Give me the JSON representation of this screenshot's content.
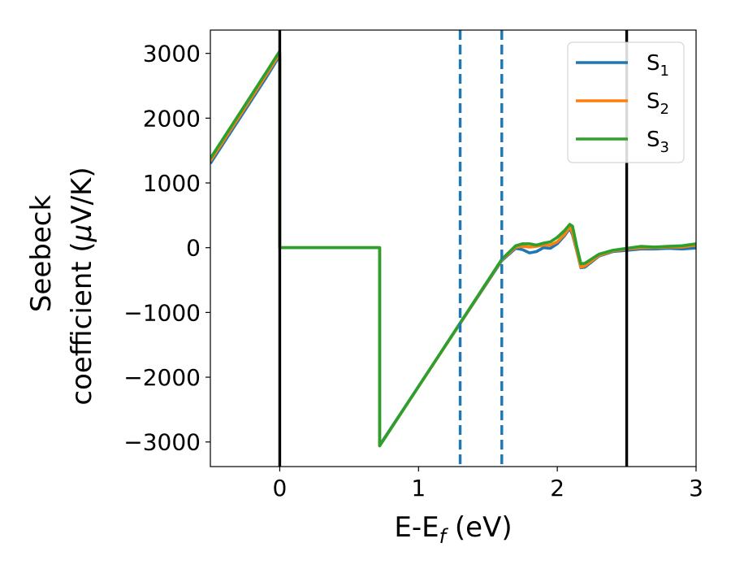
{
  "chart_data": {
    "type": "line",
    "xlabel": "E-E",
    "xlabel_sub": "f",
    "xlabel_unit": " (eV)",
    "ylabel_line1": "Seebeck",
    "ylabel_line2": "coefficient  (",
    "ylabel_mu": "μ",
    "ylabel_unit": "V/K)",
    "xlim": [
      -0.5,
      3.0
    ],
    "ylim": [
      -3380,
      3360
    ],
    "xticks": [
      0,
      1,
      2,
      3
    ],
    "xtick_labels": [
      "0",
      "1",
      "2",
      "3"
    ],
    "yticks": [
      -3000,
      -2000,
      -1000,
      0,
      1000,
      2000,
      3000
    ],
    "ytick_labels": [
      "−3000",
      "−2000",
      "−1000",
      "0",
      "1000",
      "2000",
      "3000"
    ],
    "grid": false,
    "legend_position": "top-right",
    "vlines_solid": [
      0.0,
      2.5
    ],
    "vlines_dashed": [
      1.3,
      1.6
    ],
    "vline_colors": {
      "solid": "#000000",
      "dashed": "#1f77b4"
    },
    "series": [
      {
        "name": "S",
        "name_sub": "1",
        "color": "#1f77b4",
        "points": [
          [
            -0.5,
            1300
          ],
          [
            -0.4,
            1630
          ],
          [
            -0.3,
            1960
          ],
          [
            -0.2,
            2290
          ],
          [
            -0.1,
            2620
          ],
          [
            -0.005,
            2950
          ],
          [
            0.0,
            2950
          ],
          [
            0.0,
            0
          ],
          [
            0.72,
            0
          ],
          [
            0.72,
            -3050
          ],
          [
            1.6,
            -200
          ],
          [
            1.7,
            -10
          ],
          [
            1.75,
            -30
          ],
          [
            1.8,
            -80
          ],
          [
            1.85,
            -60
          ],
          [
            1.9,
            0
          ],
          [
            1.95,
            -10
          ],
          [
            2.0,
            60
          ],
          [
            2.05,
            180
          ],
          [
            2.09,
            300
          ],
          [
            2.11,
            200
          ],
          [
            2.14,
            -50
          ],
          [
            2.17,
            -310
          ],
          [
            2.2,
            -300
          ],
          [
            2.3,
            -130
          ],
          [
            2.4,
            -60
          ],
          [
            2.5,
            -40
          ],
          [
            2.6,
            -20
          ],
          [
            2.7,
            -20
          ],
          [
            2.8,
            -10
          ],
          [
            2.9,
            -20
          ],
          [
            3.0,
            -5
          ]
        ]
      },
      {
        "name": "S",
        "name_sub": "2",
        "color": "#ff7f0e",
        "points": [
          [
            -0.5,
            1340
          ],
          [
            -0.4,
            1670
          ],
          [
            -0.3,
            2000
          ],
          [
            -0.2,
            2330
          ],
          [
            -0.1,
            2660
          ],
          [
            -0.005,
            2980
          ],
          [
            0.0,
            2980
          ],
          [
            0.0,
            0
          ],
          [
            0.72,
            0
          ],
          [
            0.72,
            -3060
          ],
          [
            1.6,
            -190
          ],
          [
            1.7,
            10
          ],
          [
            1.75,
            20
          ],
          [
            1.8,
            10
          ],
          [
            1.85,
            20
          ],
          [
            1.9,
            40
          ],
          [
            1.95,
            40
          ],
          [
            2.0,
            90
          ],
          [
            2.05,
            200
          ],
          [
            2.09,
            320
          ],
          [
            2.11,
            230
          ],
          [
            2.14,
            -40
          ],
          [
            2.17,
            -300
          ],
          [
            2.2,
            -280
          ],
          [
            2.3,
            -120
          ],
          [
            2.4,
            -50
          ],
          [
            2.5,
            -20
          ],
          [
            2.6,
            0
          ],
          [
            2.7,
            0
          ],
          [
            2.8,
            10
          ],
          [
            2.9,
            10
          ],
          [
            3.0,
            40
          ]
        ]
      },
      {
        "name": "S",
        "name_sub": "3",
        "color": "#2ca02c",
        "points": [
          [
            -0.5,
            1380
          ],
          [
            -0.4,
            1710
          ],
          [
            -0.3,
            2040
          ],
          [
            -0.2,
            2370
          ],
          [
            -0.1,
            2700
          ],
          [
            -0.005,
            3020
          ],
          [
            0.0,
            3020
          ],
          [
            0.0,
            0
          ],
          [
            0.72,
            0
          ],
          [
            0.72,
            -3060
          ],
          [
            1.6,
            -180
          ],
          [
            1.7,
            30
          ],
          [
            1.75,
            60
          ],
          [
            1.8,
            60
          ],
          [
            1.85,
            40
          ],
          [
            1.9,
            70
          ],
          [
            1.95,
            90
          ],
          [
            2.0,
            160
          ],
          [
            2.05,
            260
          ],
          [
            2.09,
            360
          ],
          [
            2.11,
            330
          ],
          [
            2.14,
            20
          ],
          [
            2.17,
            -250
          ],
          [
            2.2,
            -240
          ],
          [
            2.3,
            -100
          ],
          [
            2.4,
            -40
          ],
          [
            2.5,
            -10
          ],
          [
            2.6,
            20
          ],
          [
            2.7,
            10
          ],
          [
            2.8,
            20
          ],
          [
            2.9,
            30
          ],
          [
            3.0,
            60
          ]
        ]
      }
    ]
  }
}
